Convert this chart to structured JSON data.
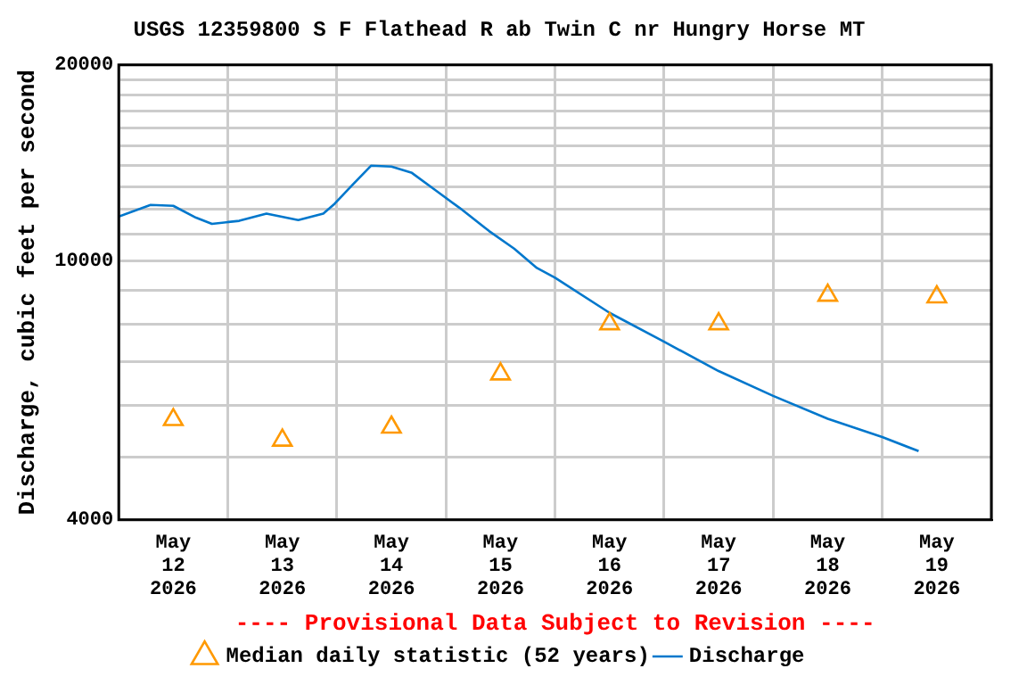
{
  "chart_data": {
    "type": "line",
    "title": "USGS 12359800 S F Flathead R ab Twin C nr Hungry Horse MT",
    "ylabel": "Discharge, cubic feet per second",
    "annotations": [
      "---- Provisional Data Subject to Revision ----"
    ],
    "log": "y",
    "grid": true,
    "legend": "bottom",
    "xlim": [
      "2026-05-12T00:00",
      "2026-05-20T00:00"
    ],
    "xticks": [
      {
        "value": "2026-05-12T00:00",
        "label": null
      },
      {
        "value": "2026-05-12T12:00",
        "label": "May 12 2026"
      },
      {
        "value": "2026-05-13T00:00",
        "label": null
      },
      {
        "value": "2026-05-13T12:00",
        "label": "May 13 2026"
      },
      {
        "value": "2026-05-14T00:00",
        "label": null
      },
      {
        "value": "2026-05-14T12:00",
        "label": "May 14 2026"
      },
      {
        "value": "2026-05-15T00:00",
        "label": null
      },
      {
        "value": "2026-05-15T12:00",
        "label": "May 15 2026"
      },
      {
        "value": "2026-05-16T00:00",
        "label": null
      },
      {
        "value": "2026-05-16T12:00",
        "label": "May 16 2026"
      },
      {
        "value": "2026-05-17T00:00",
        "label": null
      },
      {
        "value": "2026-05-17T12:00",
        "label": "May 17 2026"
      },
      {
        "value": "2026-05-18T00:00",
        "label": null
      },
      {
        "value": "2026-05-18T12:00",
        "label": "May 18 2026"
      },
      {
        "value": "2026-05-19T00:00",
        "label": null
      },
      {
        "value": "2026-05-19T12:00",
        "label": "May 19 2026"
      },
      {
        "value": "2026-05-20T00:00",
        "label": null
      }
    ],
    "ylim": [
      4000,
      20000
    ],
    "yticks": [
      4000,
      {
        "value": 5000,
        "label": null
      },
      {
        "value": 6000,
        "label": null
      },
      {
        "value": 7000,
        "label": null
      },
      {
        "value": 8000,
        "label": null
      },
      {
        "value": 9000,
        "label": null
      },
      10000,
      {
        "value": 11000,
        "label": null
      },
      {
        "value": 12000,
        "label": null
      },
      {
        "value": 13000,
        "label": null
      },
      {
        "value": 14000,
        "label": null
      },
      {
        "value": 15000,
        "label": null
      },
      {
        "value": 16000,
        "label": null
      },
      {
        "value": 17000,
        "label": null
      },
      {
        "value": 18000,
        "label": null
      },
      {
        "value": 19000,
        "label": null
      },
      20000
    ],
    "series": [
      {
        "name": "Median daily statistic (52 years)",
        "type": "scatter",
        "marker": "triangle",
        "color": "#ff9900",
        "x": [
          "2026-05-12T12:00",
          "2026-05-13T12:00",
          "2026-05-14T12:00",
          "2026-05-15T12:00",
          "2026-05-16T12:00",
          "2026-05-17T12:00",
          "2026-05-18T12:00",
          "2026-05-19T12:00"
        ],
        "values": [
          5700,
          5300,
          5550,
          6700,
          8000,
          8000,
          8850,
          8800
        ]
      },
      {
        "name": "Discharge",
        "type": "line",
        "line_style": "solid",
        "color": "#0077cc",
        "x": [
          "2026-05-12T00:00",
          "2026-05-12T07:00",
          "2026-05-12T12:00",
          "2026-05-12T17:00",
          "2026-05-12T20:30",
          "2026-05-13T02:30",
          "2026-05-13T08:30",
          "2026-05-13T15:30",
          "2026-05-13T21:00",
          "2026-05-13T23:30",
          "2026-05-14T03:30",
          "2026-05-14T07:30",
          "2026-05-14T12:00",
          "2026-05-14T16:30",
          "2026-05-14T21:45",
          "2026-05-15T03:00",
          "2026-05-15T09:30",
          "2026-05-15T15:00",
          "2026-05-15T20:00",
          "2026-05-16T00:00",
          "2026-05-16T12:00",
          "2026-05-17T00:00",
          "2026-05-17T12:00",
          "2026-05-18T00:00",
          "2026-05-18T12:00",
          "2026-05-19T00:00",
          "2026-05-19T08:00"
        ],
        "values": [
          11700,
          12190,
          12150,
          11650,
          11400,
          11520,
          11820,
          11550,
          11820,
          12240,
          13100,
          14000,
          13960,
          13650,
          12830,
          12060,
          11110,
          10440,
          9750,
          9420,
          8320,
          7510,
          6770,
          6200,
          5720,
          5360,
          5100
        ]
      }
    ]
  }
}
